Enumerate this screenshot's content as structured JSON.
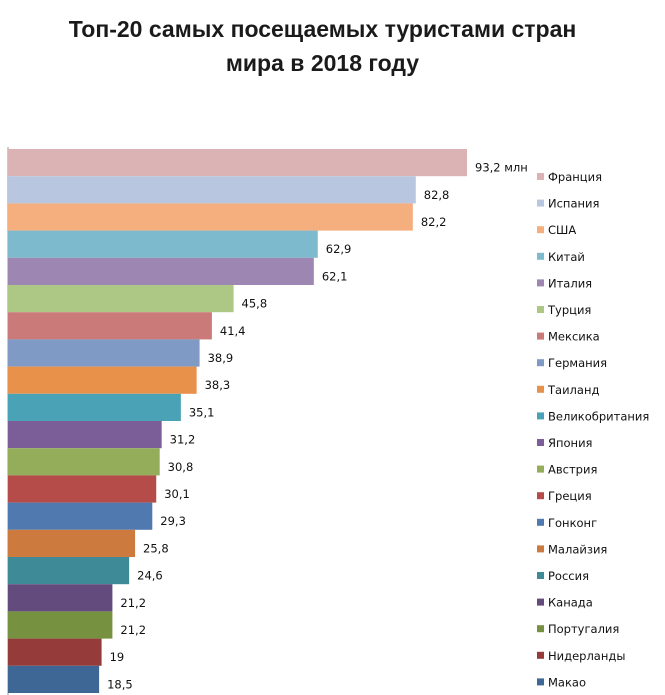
{
  "chart_data": {
    "type": "bar",
    "orientation": "horizontal",
    "title_lines": [
      "Топ-20 самых посещаемых туристами стран",
      "мира в 2018 году"
    ],
    "unit_suffix": " млн",
    "legend_position": "right",
    "grid": false,
    "xlim": [
      0,
      95
    ],
    "categories": [
      "Франция",
      "Испания",
      "США",
      "Китай",
      "Италия",
      "Турция",
      "Мексика",
      "Германия",
      "Таиланд",
      "Великобритания",
      "Япония",
      "Австрия",
      "Греция",
      "Гонконг",
      "Малайзия",
      "Россия",
      "Канада",
      "Португалия",
      "Нидерланды",
      "Макао"
    ],
    "values": [
      93.2,
      82.8,
      82.2,
      62.9,
      62.1,
      45.8,
      41.4,
      38.9,
      38.3,
      35.1,
      31.2,
      30.8,
      30.1,
      29.3,
      25.8,
      24.6,
      21.2,
      21.2,
      19,
      18.5
    ],
    "labels": [
      "93,2 млн",
      "82,8",
      "82,2",
      "62,9",
      "62,1",
      "45,8",
      "41,4",
      "38,9",
      "38,3",
      "35,1",
      "31,2",
      "30,8",
      "30,1",
      "29,3",
      "25,8",
      "24,6",
      "21,2",
      "21,2",
      "19",
      "18,5"
    ],
    "colors": [
      "#dbb3b5",
      "#b8c7df",
      "#f5ae7e",
      "#7dbace",
      "#9d86b1",
      "#adc785",
      "#c97a79",
      "#7f9ac4",
      "#e8914a",
      "#4aa2b7",
      "#7b5d97",
      "#93ad5a",
      "#b54c4a",
      "#4f79af",
      "#cc7a3e",
      "#3e8b97",
      "#634b7d",
      "#76913f",
      "#953b3a",
      "#3f6795"
    ]
  }
}
